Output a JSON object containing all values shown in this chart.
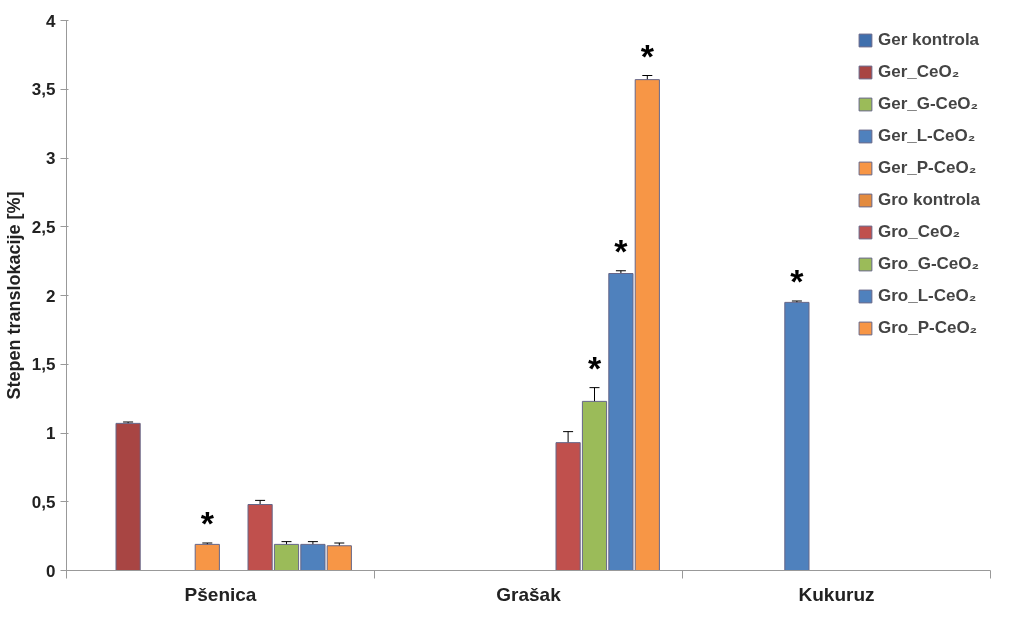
{
  "chart_data": {
    "type": "bar",
    "ylabel": "Stepen translokacije [%]",
    "categories": [
      "Pšenica",
      "Grašak",
      "Kukuruz"
    ],
    "series": [
      {
        "name": "Ger kontrola",
        "color": "#3f6fad",
        "values": [
          null,
          null,
          null
        ]
      },
      {
        "name": "Ger_CeO₂",
        "color": "#a84543",
        "values": [
          1.07,
          null,
          null
        ],
        "errors": [
          0.01,
          null,
          null
        ]
      },
      {
        "name": "Ger_G-CeO₂",
        "color": "#9bbb59",
        "values": [
          null,
          null,
          null
        ]
      },
      {
        "name": "Ger_L-CeO₂",
        "color": "#4f81bd",
        "values": [
          null,
          null,
          1.95
        ],
        "errors": [
          null,
          null,
          0.01
        ],
        "value_labels": [
          null,
          null,
          "*"
        ]
      },
      {
        "name": "Ger_P-CeO₂",
        "color": "#f79646",
        "values": [
          0.19,
          null,
          null
        ],
        "errors": [
          0.01,
          null,
          null
        ],
        "value_labels": [
          "*",
          null,
          null
        ]
      },
      {
        "name": "Gro kontrola",
        "color": "#e38b3f",
        "values": [
          null,
          null,
          null
        ]
      },
      {
        "name": "Gro_CeO₂",
        "color": "#c0504d",
        "values": [
          0.48,
          0.93,
          null
        ],
        "errors": [
          0.03,
          0.08,
          null
        ]
      },
      {
        "name": "Gro_G-CeO₂",
        "color": "#9bbb59",
        "values": [
          0.19,
          1.23,
          null
        ],
        "errors": [
          0.02,
          0.1,
          null
        ],
        "value_labels": [
          null,
          "*",
          null
        ]
      },
      {
        "name": "Gro_L-CeO₂",
        "color": "#4f81bd",
        "values": [
          0.19,
          2.16,
          null
        ],
        "errors": [
          0.02,
          0.02,
          null
        ],
        "value_labels": [
          null,
          "*",
          null
        ]
      },
      {
        "name": "Gro_P-CeO₂",
        "color": "#f79646",
        "values": [
          0.18,
          3.57,
          null
        ],
        "errors": [
          0.02,
          0.03,
          null
        ],
        "value_labels": [
          null,
          "*",
          null
        ]
      }
    ],
    "ylim": [
      0,
      4
    ],
    "yticks": [
      0,
      {
        "value": 0.5,
        "label": "0,5"
      },
      1,
      {
        "value": 1.5,
        "label": "1,5"
      },
      2,
      {
        "value": 2.5,
        "label": "2,5"
      },
      3,
      {
        "value": 3.5,
        "label": "3,5"
      },
      4
    ],
    "grid": false,
    "legend": "top right"
  }
}
